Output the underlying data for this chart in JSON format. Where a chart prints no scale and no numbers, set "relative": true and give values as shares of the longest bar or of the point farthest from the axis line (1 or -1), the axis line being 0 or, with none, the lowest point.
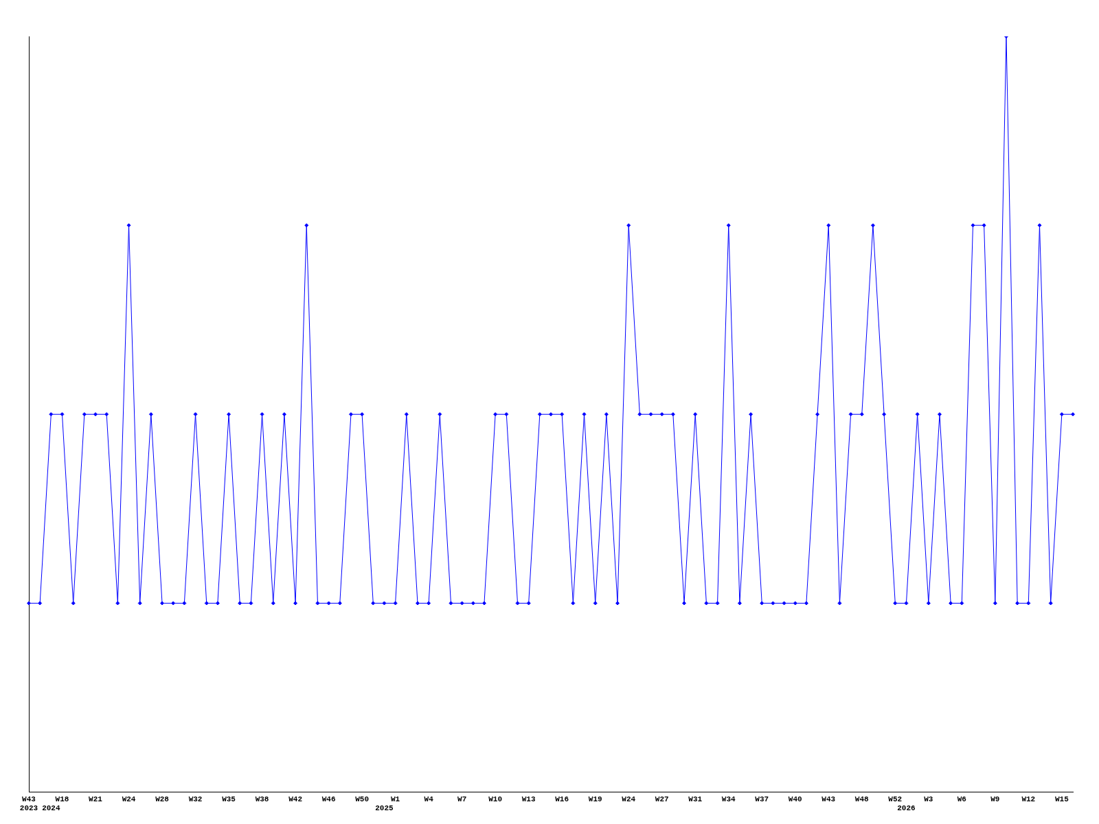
{
  "chart_data": {
    "type": "line",
    "relative": true,
    "color": "#0000ff",
    "marker": "diamond",
    "line_style": "solid",
    "grid": false,
    "legend": false,
    "categories": [
      "W43\n2023",
      null,
      "\n2024",
      "W18",
      null,
      null,
      "W21",
      null,
      null,
      "W24",
      null,
      null,
      "W28",
      null,
      null,
      "W32",
      null,
      null,
      "W35",
      null,
      null,
      "W38",
      null,
      null,
      "W42",
      null,
      null,
      "W46",
      null,
      null,
      "W50",
      null,
      "\n2025",
      "W1",
      null,
      null,
      "W4",
      null,
      null,
      "W7",
      null,
      null,
      "W10",
      null,
      null,
      "W13",
      null,
      null,
      "W16",
      null,
      null,
      "W19",
      null,
      null,
      "W24",
      null,
      null,
      "W27",
      null,
      null,
      "W31",
      null,
      null,
      "W34",
      null,
      null,
      "W37",
      null,
      null,
      "W40",
      null,
      null,
      "W43",
      null,
      null,
      "W48",
      null,
      null,
      "W52",
      "\n2026",
      null,
      "W3",
      null,
      null,
      "W6",
      null,
      null,
      "W9",
      null,
      null,
      "W12",
      null,
      null,
      "W15",
      null
    ],
    "values": [
      0.25,
      0.25,
      0.5,
      0.5,
      0.25,
      0.5,
      0.5,
      0.5,
      0.25,
      0.75,
      0.25,
      0.5,
      0.25,
      0.25,
      0.25,
      0.5,
      0.25,
      0.25,
      0.5,
      0.25,
      0.25,
      0.5,
      0.25,
      0.5,
      0.25,
      0.75,
      0.25,
      0.25,
      0.25,
      0.5,
      0.5,
      0.25,
      0.25,
      0.25,
      0.5,
      0.25,
      0.25,
      0.5,
      0.25,
      0.25,
      0.25,
      0.25,
      0.5,
      0.5,
      0.25,
      0.25,
      0.5,
      0.5,
      0.5,
      0.25,
      0.5,
      0.25,
      0.5,
      0.25,
      0.75,
      0.5,
      0.5,
      0.5,
      0.5,
      0.25,
      0.5,
      0.25,
      0.25,
      0.75,
      0.25,
      0.5,
      0.25,
      0.25,
      0.25,
      0.25,
      0.25,
      0.5,
      0.75,
      0.25,
      0.5,
      0.5,
      0.75,
      0.5,
      0.25,
      0.25,
      0.5,
      0.25,
      0.5,
      0.25,
      0.25,
      0.75,
      0.75,
      0.25,
      1,
      0.25,
      0.25,
      0.75,
      0.25,
      0.5,
      0.5
    ]
  }
}
